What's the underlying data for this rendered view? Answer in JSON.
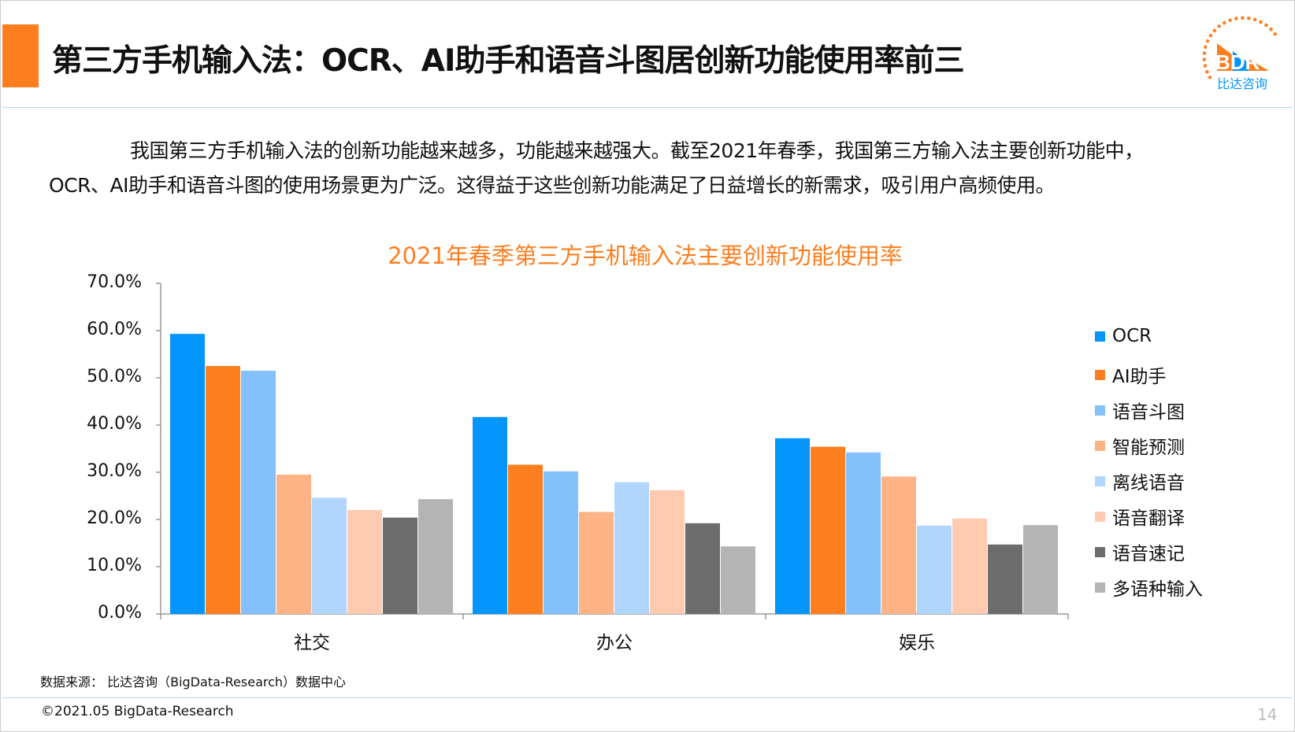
{
  "header": {
    "title": "第三方手机输入法：OCR、AI助手和语音斗图居创新功能使用率前三",
    "logo_text": "BDR",
    "logo_subtext": "比达咨询"
  },
  "intro": {
    "line1": "我国第三方手机输入法的创新功能越来越多，功能越来越强大。截至2021年春季，我国第三方输入法主要创新功能中，",
    "line2": "OCR、AI助手和语音斗图的使用场景更为广泛。这得益于这些创新功能满足了日益增长的新需求，吸引用户高频使用。"
  },
  "chart_data": {
    "type": "bar",
    "title": "2021年春季第三方手机输入法主要创新功能使用率",
    "categories": [
      "社交",
      "办公",
      "娱乐"
    ],
    "ylim": [
      0,
      70
    ],
    "yticks": [
      "0.0%",
      "10.0%",
      "20.0%",
      "30.0%",
      "40.0%",
      "50.0%",
      "60.0%",
      "70.0%"
    ],
    "legend_position": "right",
    "series": [
      {
        "name": "OCR",
        "color": "#0394fc",
        "values": [
          59.3,
          41.7,
          37.2
        ]
      },
      {
        "name": "AI助手",
        "color": "#fd7e1f",
        "values": [
          52.5,
          31.6,
          35.4
        ]
      },
      {
        "name": "语音斗图",
        "color": "#83c0fc",
        "values": [
          51.5,
          30.2,
          34.2
        ]
      },
      {
        "name": "智能预测",
        "color": "#feb386",
        "values": [
          29.5,
          21.6,
          29.1
        ]
      },
      {
        "name": "离线语音",
        "color": "#b1d6fe",
        "values": [
          24.6,
          27.9,
          18.7
        ]
      },
      {
        "name": "语音翻译",
        "color": "#fecbb0",
        "values": [
          22.0,
          26.2,
          20.2
        ]
      },
      {
        "name": "语音速记",
        "color": "#6c6c6c",
        "values": [
          20.4,
          19.2,
          14.7
        ]
      },
      {
        "name": "多语种输入",
        "color": "#b4b4b4",
        "values": [
          24.3,
          14.3,
          18.8
        ]
      }
    ]
  },
  "footer": {
    "source": "数据来源： 比达咨询（BigData-Research）数据中心",
    "copyright": "©2021.05 BigData-Research",
    "page_number": "14"
  }
}
